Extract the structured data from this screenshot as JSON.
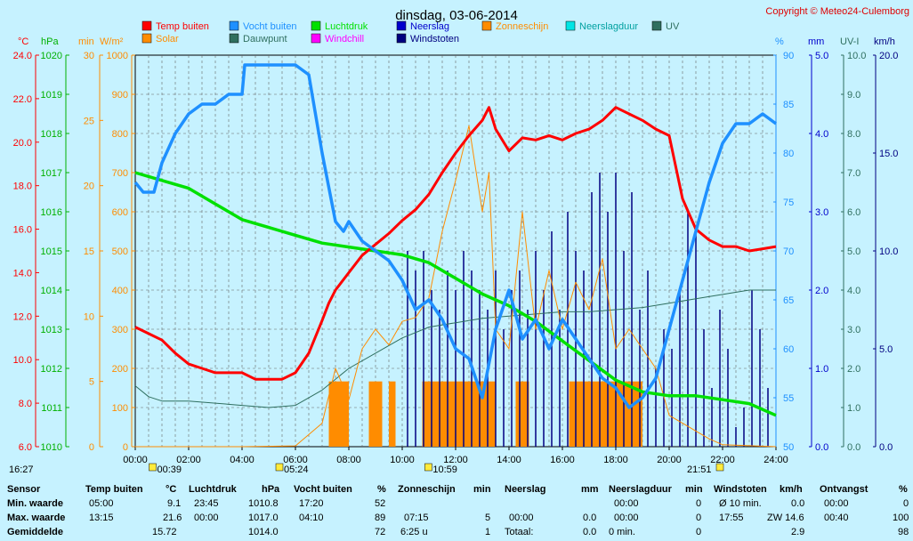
{
  "header": {
    "title": "dinsdag, 03-06-2014",
    "copyright": "Copyright © Meteo24-Culemborg"
  },
  "colors": {
    "background": "#c6f2ff",
    "plot_bg": "#c6f2ff",
    "grid": "#666666",
    "temp": "#ff0000",
    "humidity": "#1e90ff",
    "pressure": "#00e000",
    "solar": "#ff8c00",
    "dewpoint": "#2f6f5f",
    "windgust": "#000080",
    "sunshine": "#ff8c00"
  },
  "legend": [
    {
      "label": "Temp buiten",
      "color": "#ff0000"
    },
    {
      "label": "Vocht buiten",
      "color": "#1e90ff"
    },
    {
      "label": "Luchtdruk",
      "color": "#00e000"
    },
    {
      "label": "Neerslag",
      "color": "#0000cc"
    },
    {
      "label": "Zonneschijn",
      "color": "#ff8c00"
    },
    {
      "label": "Neerslagduur",
      "color": "#00e5e5"
    },
    {
      "label": "UV",
      "color": "#2f6f5f"
    },
    {
      "label": "Solar",
      "color": "#ff8c00"
    },
    {
      "label": "Dauwpunt",
      "color": "#2f6f5f"
    },
    {
      "label": "Windchill",
      "color": "#ff00ff"
    },
    {
      "label": "Windstoten",
      "color": "#000080"
    }
  ],
  "chart_data": {
    "type": "line",
    "title": "dinsdag, 03-06-2014",
    "x_range_hours": [
      0,
      24
    ],
    "x_ticks": [
      "00:00",
      "02:00",
      "04:00",
      "06:00",
      "08:00",
      "10:00",
      "12:00",
      "14:00",
      "16:00",
      "18:00",
      "20:00",
      "22:00",
      "24:00"
    ],
    "axes": {
      "temp": {
        "unit": "°C",
        "range": [
          6,
          24
        ],
        "ticks": [
          "24.0",
          "22.0",
          "20.0",
          "18.0",
          "16.0",
          "14.0",
          "12.0",
          "10.0",
          "8.0",
          "6.0"
        ],
        "color": "#ff0000"
      },
      "pressure": {
        "unit": "hPa",
        "range": [
          1010,
          1020
        ],
        "ticks": [
          "1020",
          "1019",
          "1018",
          "1017",
          "1016",
          "1015",
          "1014",
          "1013",
          "1012",
          "1011",
          "1010"
        ],
        "color": "#00b000"
      },
      "minutes": {
        "unit": "min",
        "range": [
          0,
          30
        ],
        "ticks": [
          "30",
          "25",
          "20",
          "15",
          "10",
          "5",
          "0"
        ],
        "color": "#ff8c00"
      },
      "solar": {
        "unit": "W/m²",
        "range": [
          0,
          1000
        ],
        "ticks": [
          "1000",
          "900",
          "800",
          "700",
          "600",
          "500",
          "400",
          "300",
          "200",
          "100",
          "0"
        ],
        "color": "#ff8c00"
      },
      "humidity": {
        "unit": "%",
        "range": [
          50,
          90
        ],
        "ticks": [
          "90",
          "85",
          "80",
          "75",
          "70",
          "65",
          "60",
          "55",
          "50"
        ],
        "color": "#1e90ff"
      },
      "rain": {
        "unit": "mm",
        "range": [
          0,
          5
        ],
        "ticks": [
          "5.0",
          "4.0",
          "3.0",
          "2.0",
          "1.0",
          "0.0"
        ],
        "color": "#0000cc"
      },
      "uv": {
        "unit": "UV-I",
        "range": [
          0,
          10
        ],
        "ticks": [
          "10.0",
          "9.0",
          "8.0",
          "7.0",
          "6.0",
          "5.0",
          "4.0",
          "3.0",
          "2.0",
          "1.0",
          "0.0"
        ],
        "color": "#2f6f5f"
      },
      "wind": {
        "unit": "km/h",
        "range": [
          0,
          20
        ],
        "ticks": [
          "20.0",
          "15.0",
          "10.0",
          "5.0",
          "0.0"
        ],
        "color": "#000080"
      }
    },
    "series": [
      {
        "name": "Temp buiten",
        "axis": "temp",
        "x": [
          0,
          0.5,
          1,
          1.5,
          2,
          2.5,
          3,
          3.5,
          4,
          4.5,
          5,
          5.5,
          6,
          6.5,
          7,
          7.25,
          7.5,
          8,
          8.5,
          9,
          9.5,
          10,
          10.5,
          11,
          11.5,
          12,
          12.5,
          13,
          13.25,
          13.5,
          14,
          14.5,
          15,
          15.5,
          16,
          16.5,
          17,
          17.5,
          18,
          18.5,
          19,
          19.5,
          20,
          20.5,
          21,
          21.5,
          22,
          22.5,
          23,
          23.5,
          24
        ],
        "y": [
          11.5,
          11.2,
          10.9,
          10.3,
          9.8,
          9.6,
          9.4,
          9.4,
          9.4,
          9.1,
          9.1,
          9.1,
          9.4,
          10.3,
          11.8,
          12.6,
          13.2,
          14.0,
          14.8,
          15.3,
          15.8,
          16.4,
          16.9,
          17.6,
          18.6,
          19.5,
          20.3,
          21.0,
          21.6,
          20.6,
          19.6,
          20.2,
          20.1,
          20.3,
          20.1,
          20.4,
          20.6,
          21.0,
          21.6,
          21.3,
          21.0,
          20.6,
          20.3,
          17.4,
          16.0,
          15.5,
          15.2,
          15.2,
          15.0,
          15.1,
          15.2
        ]
      },
      {
        "name": "Vocht buiten",
        "axis": "humidity",
        "x": [
          0,
          0.3,
          0.7,
          1,
          1.5,
          2,
          2.5,
          3,
          3.5,
          4,
          4.1,
          5,
          6,
          6.5,
          7,
          7.5,
          7.8,
          8,
          8.5,
          9,
          9.5,
          10,
          10.5,
          11,
          11.5,
          12,
          12.5,
          13,
          13.5,
          14,
          14.5,
          15,
          15.5,
          16,
          16.5,
          17,
          17.5,
          18,
          18.5,
          19,
          19.5,
          20,
          20.5,
          21,
          21.5,
          22,
          22.5,
          23,
          23.5,
          24
        ],
        "y": [
          77,
          76,
          76,
          79,
          82,
          84,
          85,
          85,
          86,
          86,
          89,
          89,
          89,
          88,
          80,
          73,
          72,
          73,
          71,
          70,
          69,
          67,
          64,
          65,
          63,
          60,
          59,
          55,
          62,
          66,
          61,
          63,
          60,
          63,
          61,
          59,
          57,
          56,
          54,
          55,
          57,
          62,
          67,
          72,
          77,
          81,
          83,
          83,
          84,
          83
        ]
      },
      {
        "name": "Luchtdruk",
        "axis": "pressure",
        "x": [
          0,
          1,
          2,
          3,
          4,
          5,
          6,
          7,
          8,
          9,
          10,
          11,
          12,
          13,
          14,
          15,
          16,
          17,
          18,
          19,
          20,
          21,
          22,
          23,
          24
        ],
        "y": [
          1017.0,
          1016.8,
          1016.6,
          1016.2,
          1015.8,
          1015.6,
          1015.4,
          1015.2,
          1015.1,
          1015.0,
          1014.9,
          1014.7,
          1014.3,
          1013.9,
          1013.6,
          1013.2,
          1012.7,
          1012.2,
          1011.7,
          1011.4,
          1011.3,
          1011.3,
          1011.2,
          1011.1,
          1010.8
        ]
      },
      {
        "name": "Solar",
        "axis": "solar",
        "x": [
          0,
          4,
          6,
          7,
          7.5,
          8,
          8.5,
          9,
          9.5,
          10,
          10.5,
          11,
          11.5,
          12,
          12.5,
          13,
          13.25,
          13.5,
          14,
          14.5,
          15,
          15.5,
          16,
          16.5,
          17,
          17.5,
          18,
          18.5,
          19,
          19.5,
          20,
          20.5,
          21,
          21.5,
          22,
          24
        ],
        "y": [
          0,
          0,
          2,
          60,
          200,
          120,
          250,
          300,
          260,
          320,
          330,
          380,
          550,
          680,
          820,
          600,
          700,
          300,
          250,
          600,
          300,
          450,
          300,
          420,
          350,
          480,
          250,
          300,
          250,
          200,
          80,
          60,
          40,
          20,
          5,
          0
        ]
      },
      {
        "name": "Dauwpunt",
        "axis": "temp",
        "x": [
          0,
          0.5,
          1,
          2,
          3,
          4,
          5,
          6,
          7,
          8,
          9,
          10,
          11,
          12,
          13,
          14,
          15,
          16,
          17,
          18,
          19,
          20,
          21,
          22,
          23,
          24
        ],
        "y": [
          8.8,
          8.3,
          8.1,
          8.1,
          8.0,
          7.9,
          7.8,
          7.9,
          8.6,
          9.6,
          10.3,
          11.0,
          11.5,
          11.7,
          11.9,
          12.0,
          12.1,
          12.2,
          12.2,
          12.3,
          12.4,
          12.6,
          12.8,
          13.0,
          13.2,
          13.2
        ]
      }
    ],
    "bars": [
      {
        "name": "Zonneschijn",
        "axis": "minutes",
        "x": [
          7.25,
          7.5,
          7.75,
          8.75,
          9.0,
          9.5,
          10.75,
          11.0,
          11.25,
          11.5,
          11.75,
          12.0,
          12.25,
          12.5,
          12.75,
          13.0,
          13.25,
          14.25,
          14.5,
          16.25,
          16.5,
          16.75,
          17.0,
          17.25,
          17.5,
          17.75,
          18.0,
          18.25,
          18.5,
          18.75
        ],
        "y": [
          5,
          5,
          5,
          5,
          5,
          5,
          5,
          5,
          5,
          5,
          5,
          5,
          5,
          5,
          5,
          5,
          5,
          5,
          5,
          5,
          5,
          5,
          5,
          5,
          5,
          5,
          5,
          5,
          5,
          5
        ]
      },
      {
        "name": "Windstoten",
        "axis": "wind",
        "x": [
          10.2,
          10.5,
          10.8,
          11.1,
          11.4,
          11.7,
          12.0,
          12.3,
          12.6,
          12.9,
          13.2,
          13.5,
          13.8,
          14.1,
          14.4,
          14.7,
          15.0,
          15.3,
          15.6,
          15.9,
          16.2,
          16.5,
          16.8,
          17.1,
          17.4,
          17.7,
          18.0,
          18.3,
          18.6,
          18.9,
          19.2,
          19.5,
          19.8,
          20.1,
          20.4,
          20.7,
          21.0,
          21.3,
          21.6,
          21.9,
          22.2,
          22.5,
          22.8,
          23.1,
          23.4,
          23.7
        ],
        "y": [
          10,
          9,
          10,
          8,
          7,
          9,
          8,
          10,
          9,
          8,
          7,
          9,
          6,
          8,
          9,
          7,
          10,
          8,
          11,
          7,
          12,
          10,
          9,
          13,
          14,
          12,
          14,
          10,
          13,
          7,
          9,
          4,
          6,
          5,
          8,
          12,
          11,
          6,
          3,
          7,
          5,
          1,
          2,
          8,
          6,
          3
        ]
      }
    ]
  },
  "markers": {
    "sunset_prev": "16:27",
    "dew_min": "00:39",
    "sunrise": "05:24",
    "sun_max": "10:59",
    "sunset": "21:51"
  },
  "stats": {
    "row_labels": [
      "Sensor",
      "Min. waarde",
      "Max. waarde",
      "Gemiddelde"
    ],
    "temp": {
      "header": "Temp buiten",
      "unit": "°C",
      "min_time": "05:00",
      "min": "9.1",
      "max_time": "13:15",
      "max": "21.6",
      "avg": "15.72"
    },
    "pressure": {
      "header": "Luchtdruk",
      "unit": "hPa",
      "min_time": "23:45",
      "min": "1010.8",
      "max_time": "00:00",
      "max": "1017.0",
      "avg": "1014.0"
    },
    "humidity": {
      "header": "Vocht buiten",
      "unit": "%",
      "min_time": "17:20",
      "min": "52",
      "max_time": "04:10",
      "max": "89",
      "avg": "72"
    },
    "sunshine": {
      "header": "Zonneschijn",
      "unit": "min",
      "min_time": "",
      "min": "",
      "max_time": "07:15",
      "max": "5",
      "avg_label": "6:25 u",
      "avg": "1"
    },
    "rain": {
      "header": "Neerslag",
      "unit": "mm",
      "max_time": "00:00",
      "max": "0.0",
      "avg_label": "Totaal:",
      "avg": "0.0"
    },
    "rainduration": {
      "header": "Neerslagduur",
      "unit": "min",
      "min_time": "00:00",
      "min": "0",
      "max_time": "00:00",
      "max": "0",
      "avg_label": "0 min.",
      "avg": "0"
    },
    "wind": {
      "header": "Windstoten",
      "unit": "km/h",
      "min_label": "Ø 10 min.",
      "min": "0.0",
      "max_time": "17:55",
      "max": "ZW 14.6",
      "avg": "2.9"
    },
    "received": {
      "header": "Ontvangst",
      "unit": "%",
      "min_time": "00:00",
      "min": "0",
      "max_time": "00:40",
      "max": "100",
      "avg": "98"
    }
  }
}
